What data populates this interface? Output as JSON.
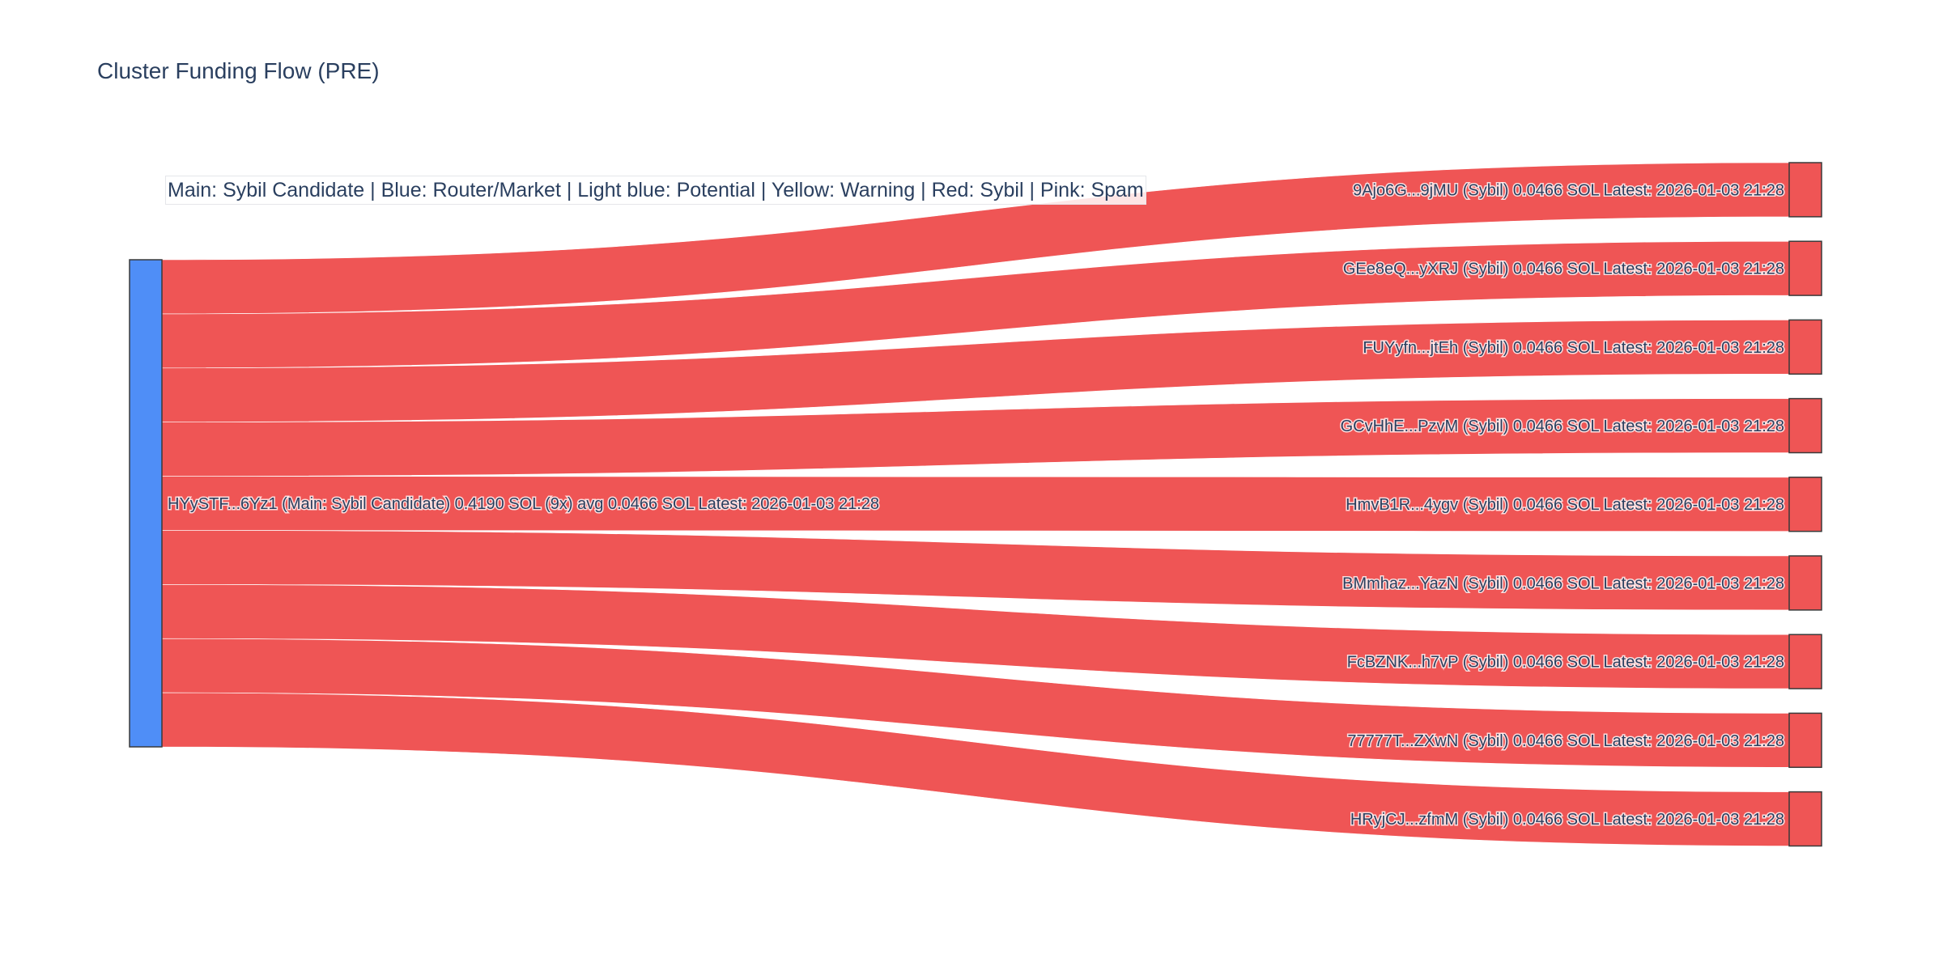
{
  "title": "Cluster Funding Flow (PRE)",
  "legend_text": "Main: Sybil Candidate  |  Blue: Router/Market | Light blue: Potential | Yellow: Warning | Red: Sybil | Pink: Spam",
  "colors": {
    "main_node": "#4f8ef7",
    "sybil_node": "#ef5555",
    "link": "#ef5555",
    "node_border": "#3a3a3a",
    "text": "#2a3f5f"
  },
  "chart_data": {
    "type": "sankey",
    "title": "Cluster Funding Flow (PRE)",
    "source": {
      "id": "HYySTF...6Yz1",
      "label": "HYySTF...6Yz1 (Main: Sybil Candidate) 0.4190 SOL (9x) avg 0.0466 SOL Latest: 2026-01-03 21:28",
      "total": 0.419,
      "count": 9
    },
    "targets": [
      {
        "id": "9Ajo6G...9jMU",
        "label": "9Ajo6G...9jMU (Sybil) 0.0466 SOL Latest: 2026-01-03 21:28",
        "value": 0.0466
      },
      {
        "id": "GEe8eQ...yXRJ",
        "label": "GEe8eQ...yXRJ (Sybil) 0.0466 SOL Latest: 2026-01-03 21:28",
        "value": 0.0466
      },
      {
        "id": "FUYyfn...jtEh",
        "label": "FUYyfn...jtEh (Sybil) 0.0466 SOL Latest: 2026-01-03 21:28",
        "value": 0.0466
      },
      {
        "id": "GCvHhE...PzvM",
        "label": "GCvHhE...PzvM (Sybil) 0.0466 SOL Latest: 2026-01-03 21:28",
        "value": 0.0466
      },
      {
        "id": "HmvB1R...4ygv",
        "label": "HmvB1R...4ygv (Sybil) 0.0466 SOL Latest: 2026-01-03 21:28",
        "value": 0.0466
      },
      {
        "id": "BMmhaz...YazN",
        "label": "BMmhaz...YazN (Sybil) 0.0466 SOL Latest: 2026-01-03 21:28",
        "value": 0.0466
      },
      {
        "id": "FcBZNK...h7vP",
        "label": "FcBZNK...h7vP (Sybil) 0.0466 SOL Latest: 2026-01-03 21:28",
        "value": 0.0466
      },
      {
        "id": "77777T...ZXwN",
        "label": "77777T...ZXwN (Sybil) 0.0466 SOL Latest: 2026-01-03 21:28",
        "value": 0.0466
      },
      {
        "id": "HRyjCJ...zfmM",
        "label": "HRyjCJ...zfmM (Sybil) 0.0466 SOL Latest: 2026-01-03 21:28",
        "value": 0.0466
      }
    ]
  }
}
